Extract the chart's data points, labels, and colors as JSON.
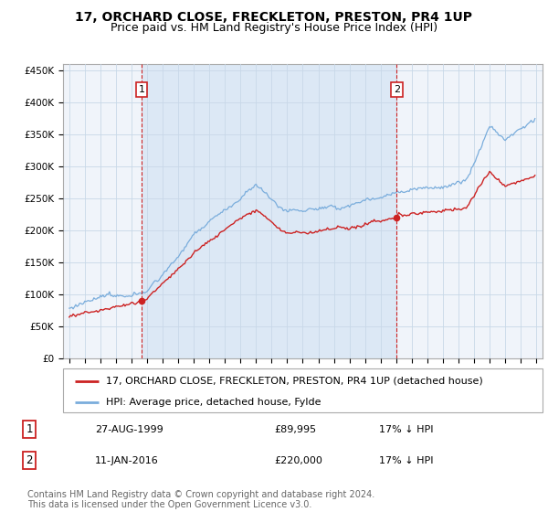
{
  "title": "17, ORCHARD CLOSE, FRECKLETON, PRESTON, PR4 1UP",
  "subtitle": "Price paid vs. HM Land Registry's House Price Index (HPI)",
  "ylim": [
    0,
    460000
  ],
  "yticks": [
    0,
    50000,
    100000,
    150000,
    200000,
    250000,
    300000,
    350000,
    400000,
    450000
  ],
  "ytick_labels": [
    "£0",
    "£50K",
    "£100K",
    "£150K",
    "£200K",
    "£250K",
    "£300K",
    "£350K",
    "£400K",
    "£450K"
  ],
  "hpi_color": "#7aaddc",
  "price_color": "#cc2222",
  "marker_color": "#cc2222",
  "sale1_year": 1999.65,
  "sale1_price": 89995,
  "sale2_year": 2016.03,
  "sale2_price": 220000,
  "legend_label1": "17, ORCHARD CLOSE, FRECKLETON, PRESTON, PR4 1UP (detached house)",
  "legend_label2": "HPI: Average price, detached house, Fylde",
  "table_row1": [
    "1",
    "27-AUG-1999",
    "£89,995",
    "17% ↓ HPI"
  ],
  "table_row2": [
    "2",
    "11-JAN-2016",
    "£220,000",
    "17% ↓ HPI"
  ],
  "footer": "Contains HM Land Registry data © Crown copyright and database right 2024.\nThis data is licensed under the Open Government Licence v3.0.",
  "background_color": "#ffffff",
  "plot_bg_color": "#f0f4fa",
  "shaded_region_color": "#dce8f5",
  "grid_color": "#c8d8e8",
  "dashed_vline_color": "#cc2222",
  "title_fontsize": 10,
  "subtitle_fontsize": 9,
  "tick_fontsize": 7.5,
  "legend_fontsize": 8,
  "table_fontsize": 8,
  "footer_fontsize": 7
}
